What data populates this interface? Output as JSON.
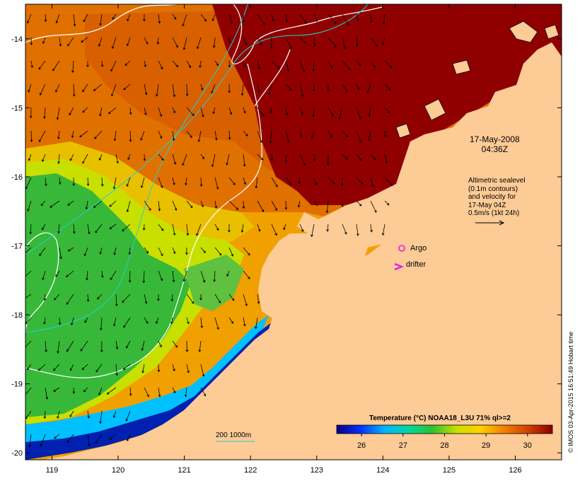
{
  "map": {
    "lon_range": [
      118.6,
      126.7
    ],
    "lat_range": [
      -20.1,
      -13.5
    ],
    "x_ticks": [
      119,
      120,
      121,
      122,
      123,
      124,
      125,
      126
    ],
    "y_ticks": [
      -14,
      -15,
      -16,
      -17,
      -18,
      -19,
      -20
    ],
    "x_tick_labels": [
      "119",
      "120",
      "121",
      "122",
      "123",
      "124",
      "125",
      "126"
    ],
    "y_tick_labels": [
      "-14",
      "-15",
      "-16",
      "-17",
      "-18",
      "-19",
      "-20"
    ]
  },
  "annotations": {
    "date_line1": "17-May-2008",
    "date_line2": "04:36Z",
    "info_line1": "Altimetric sealevel",
    "info_line2": "(0.1m contours)",
    "info_line3": "and velocity for",
    "info_line4": "17-May 04Z",
    "info_line5": "0.5m/s (1kt 24h)",
    "argo_label": "Argo",
    "drifter_label": "drifter",
    "bathy_scale": "200  1000m",
    "credit": "© IMOS 03-Apr-2015 16:51:49 Hobart time"
  },
  "colorbar": {
    "title": "Temperature (°C) NOAA18_L3U 71% ql>=2",
    "ticks": [
      26,
      27,
      28,
      29,
      30
    ],
    "tick_labels": [
      "26",
      "27",
      "28",
      "29",
      "30"
    ],
    "range": [
      25.4,
      30.6
    ],
    "colors": [
      "#0b0080",
      "#0030ff",
      "#00b4ff",
      "#00d8a0",
      "#30c030",
      "#c8e000",
      "#ffd000",
      "#f08000",
      "#d04000",
      "#8b0000"
    ]
  },
  "colors": {
    "land": "#fdcb96",
    "hot_sea": "#900000",
    "warm_sea": "#e07000",
    "mid_sea": "#f0b000",
    "cool_sea": "#c8e000",
    "cold_sea": "#38b838",
    "coastal_sea": "#00c0ff",
    "deep_coast": "#0010a0",
    "contour_white": "#ffffff",
    "isobath_cyan": "#20d0d0",
    "argo_marker": "#e020e0"
  }
}
